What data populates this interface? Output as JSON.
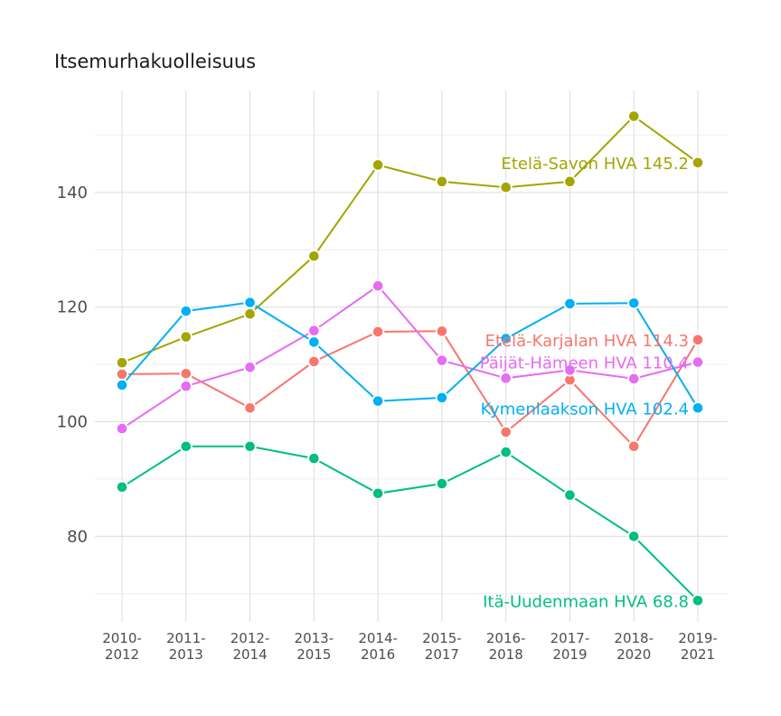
{
  "title": "Itsemurhakuolleisuus",
  "chart_data": {
    "type": "line",
    "title": "Itsemurhakuolleisuus",
    "xlabel": "",
    "ylabel": "",
    "categories": [
      [
        "2010-",
        "2012"
      ],
      [
        "2011-",
        "2013"
      ],
      [
        "2012-",
        "2014"
      ],
      [
        "2013-",
        "2015"
      ],
      [
        "2014-",
        "2016"
      ],
      [
        "2015-",
        "2017"
      ],
      [
        "2016-",
        "2018"
      ],
      [
        "2017-",
        "2019"
      ],
      [
        "2018-",
        "2020"
      ],
      [
        "2019-",
        "2021"
      ]
    ],
    "yticks": [
      80,
      100,
      120,
      140
    ],
    "ylim": [
      67,
      157
    ],
    "grid": true,
    "series": [
      {
        "name": "Etelä-Savon HVA",
        "label": "Etelä-Savon HVA 145.2",
        "color": "#a3a500",
        "values": [
          110.3,
          114.8,
          118.8,
          128.9,
          144.8,
          141.9,
          140.9,
          141.9,
          153.3,
          145.2
        ]
      },
      {
        "name": "Etelä-Karjalan HVA",
        "label": "Etelä-Karjalan HVA 114.3",
        "color": "#f8766d",
        "values": [
          108.3,
          108.4,
          102.4,
          110.5,
          115.7,
          115.8,
          98.2,
          107.3,
          95.7,
          114.3
        ]
      },
      {
        "name": "Päijät-Hämeen HVA",
        "label": "Päijät-Hämeen HVA 110.4",
        "color": "#e76bf3",
        "values": [
          98.8,
          106.2,
          109.5,
          115.9,
          123.7,
          110.7,
          107.6,
          109.0,
          107.5,
          110.4
        ]
      },
      {
        "name": "Kymenlaakson HVA",
        "label": "Kymenlaakson HVA 102.4",
        "color": "#00b0f6",
        "values": [
          106.4,
          119.3,
          120.8,
          113.9,
          103.6,
          104.2,
          114.5,
          120.6,
          120.7,
          102.4
        ]
      },
      {
        "name": "Itä-Uudenmaan HVA",
        "label": "Itä-Uudenmaan HVA 68.8",
        "color": "#00bf7d",
        "values": [
          88.6,
          95.7,
          95.7,
          93.6,
          87.5,
          89.2,
          94.7,
          87.2,
          80.0,
          68.8
        ]
      }
    ]
  }
}
